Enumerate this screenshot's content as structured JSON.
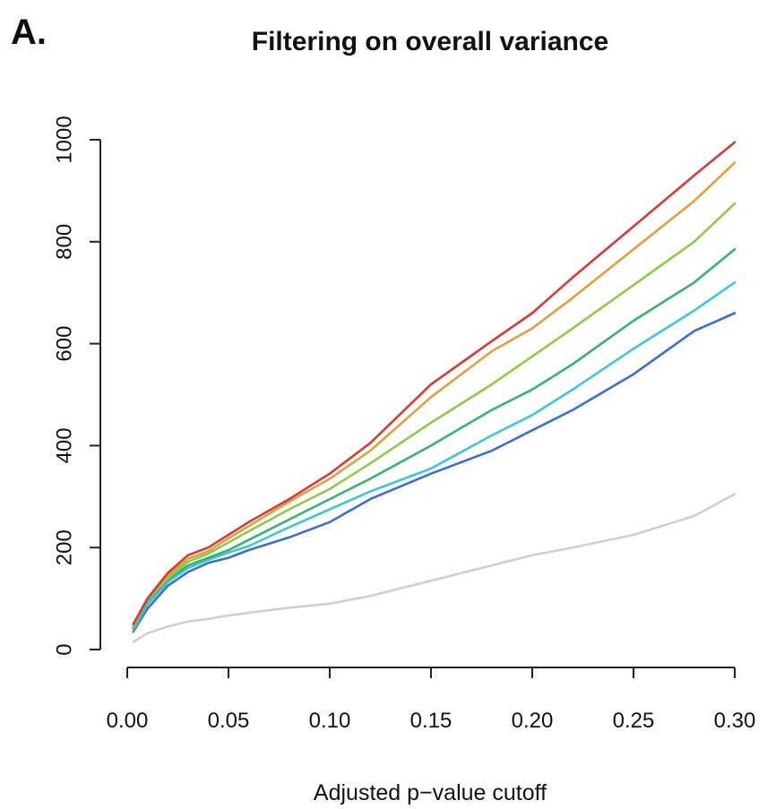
{
  "panel_label": "A.",
  "chart_data": {
    "type": "line",
    "title": "Filtering on overall variance",
    "xlabel": "Adjusted p−value cutoff",
    "ylabel": "",
    "xlim": [
      0,
      0.3
    ],
    "ylim": [
      0,
      1000
    ],
    "xticks": [
      0.0,
      0.05,
      0.1,
      0.15,
      0.2,
      0.25,
      0.3
    ],
    "xtick_labels": [
      "0.00",
      "0.05",
      "0.10",
      "0.15",
      "0.20",
      "0.25",
      "0.30"
    ],
    "yticks": [
      0,
      200,
      400,
      600,
      800,
      1000
    ],
    "ytick_labels": [
      "0",
      "200",
      "400",
      "600",
      "800",
      "1000"
    ],
    "grid": false,
    "x": [
      0.003,
      0.01,
      0.02,
      0.03,
      0.04,
      0.05,
      0.06,
      0.08,
      0.1,
      0.12,
      0.15,
      0.18,
      0.2,
      0.22,
      0.25,
      0.28,
      0.3
    ],
    "series": [
      {
        "color": "#d43a3a",
        "values": [
          50,
          100,
          150,
          185,
          200,
          225,
          250,
          295,
          345,
          405,
          520,
          605,
          660,
          730,
          830,
          930,
          995
        ]
      },
      {
        "color": "#e0a03c",
        "values": [
          48,
          100,
          145,
          178,
          193,
          218,
          242,
          290,
          335,
          390,
          495,
          585,
          630,
          690,
          785,
          880,
          955
        ]
      },
      {
        "color": "#8dcb46",
        "values": [
          45,
          98,
          140,
          172,
          188,
          210,
          232,
          275,
          315,
          365,
          445,
          520,
          575,
          630,
          715,
          800,
          875
        ]
      },
      {
        "color": "#33b56a",
        "values": [
          42,
          95,
          137,
          165,
          180,
          195,
          215,
          255,
          295,
          335,
          400,
          470,
          510,
          560,
          645,
          720,
          785
        ]
      },
      {
        "color": "#3cc7d6",
        "values": [
          38,
          88,
          132,
          160,
          176,
          190,
          203,
          240,
          275,
          310,
          355,
          420,
          460,
          510,
          590,
          665,
          720
        ]
      },
      {
        "color": "#3a6fd2",
        "values": [
          35,
          80,
          125,
          152,
          170,
          180,
          195,
          220,
          250,
          295,
          345,
          390,
          430,
          470,
          540,
          625,
          660
        ]
      },
      {
        "color": "#cfcfcf",
        "values": [
          15,
          32,
          45,
          55,
          60,
          67,
          72,
          82,
          90,
          105,
          135,
          165,
          185,
          200,
          225,
          262,
          305
        ]
      }
    ]
  }
}
